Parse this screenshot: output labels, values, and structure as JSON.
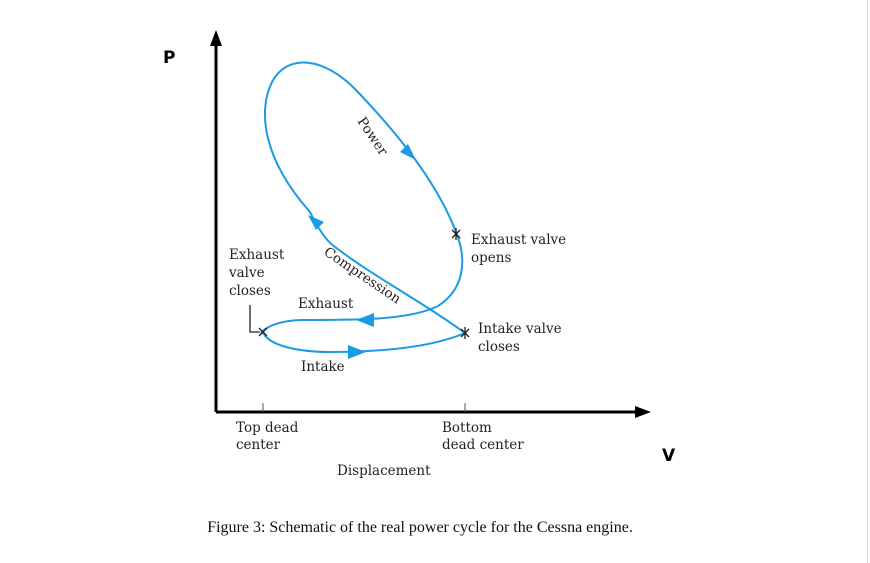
{
  "axes": {
    "y_label": "P",
    "x_label": "V",
    "x_title": "Displacement",
    "tick_left": [
      "Top dead",
      "center"
    ],
    "tick_right": [
      "Bottom",
      "dead center"
    ]
  },
  "stroke_labels": {
    "power": "Power",
    "compression": "Compression",
    "exhaust": "Exhaust",
    "intake": "Intake"
  },
  "events": {
    "exhaust_valve_opens": [
      "Exhaust valve",
      "opens"
    ],
    "exhaust_valve_closes": [
      "Exhaust",
      "valve",
      "closes"
    ],
    "intake_valve_closes": [
      "Intake valve",
      "closes"
    ]
  },
  "colors": {
    "curve": "#1a9be6",
    "axes": "#000000"
  },
  "caption": "Figure 3: Schematic of the real power cycle for the Cessna engine."
}
